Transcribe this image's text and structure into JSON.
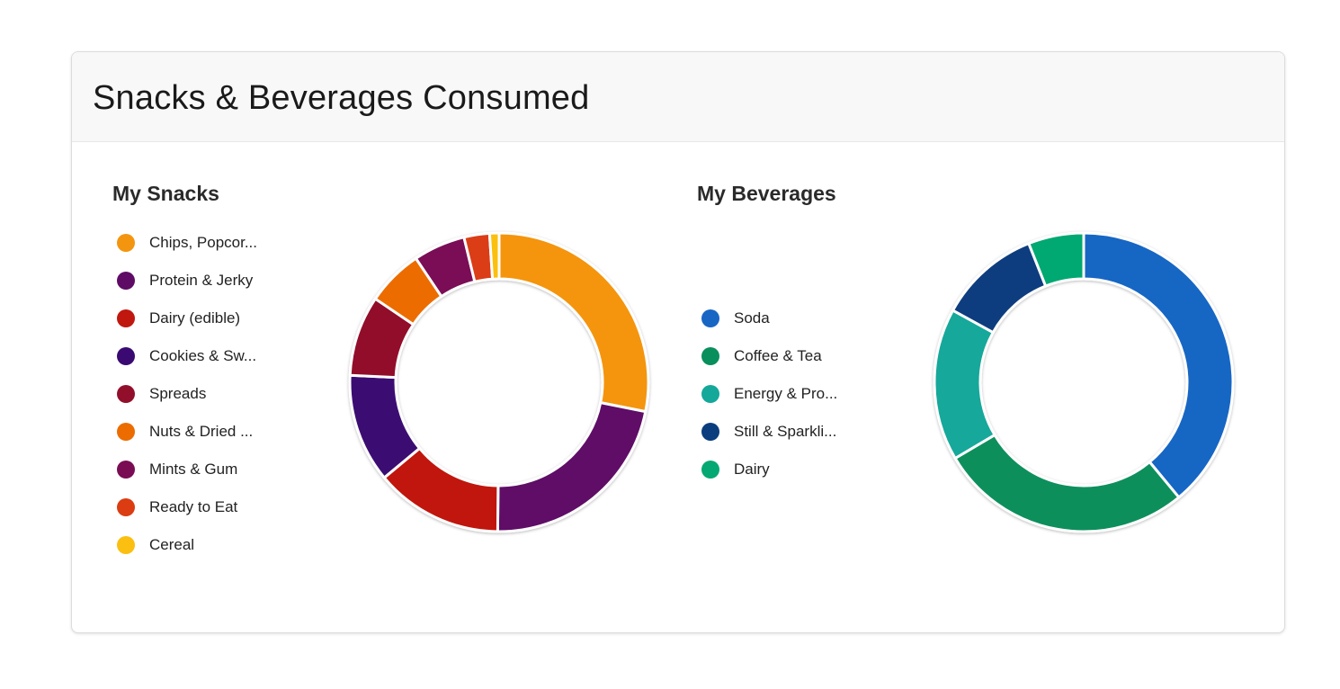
{
  "card": {
    "title": "Snacks & Beverages Consumed"
  },
  "chart_data": [
    {
      "type": "pie",
      "variant": "donut",
      "title": "My Snacks",
      "legend_position": "left",
      "categories": [
        "Chips, Popcor...",
        "Protein & Jerky",
        "Dairy (edible)",
        "Cookies & Sw...",
        "Spreads",
        "Nuts & Dried ...",
        "Mints & Gum",
        "Ready to Eat",
        "Cereal"
      ],
      "values": [
        27.5,
        21.5,
        13.5,
        11.5,
        8.5,
        6.0,
        5.5,
        2.7,
        1.0
      ],
      "colors": [
        "#f4950f",
        "#5e0b66",
        "#c0170f",
        "#3a0a72",
        "#920f2b",
        "#ec6c00",
        "#7a0c54",
        "#db3c12",
        "#fbbf11"
      ]
    },
    {
      "type": "pie",
      "variant": "donut",
      "title": "My Beverages",
      "legend_position": "left",
      "categories": [
        "Soda",
        "Coffee & Tea",
        "Energy & Pro...",
        "Still & Sparkli...",
        "Dairy"
      ],
      "values": [
        39.0,
        27.5,
        16.5,
        11.0,
        6.0
      ],
      "colors": [
        "#1766c4",
        "#098f5b",
        "#13a89a",
        "#0a3d7e",
        "#04a872"
      ]
    }
  ]
}
